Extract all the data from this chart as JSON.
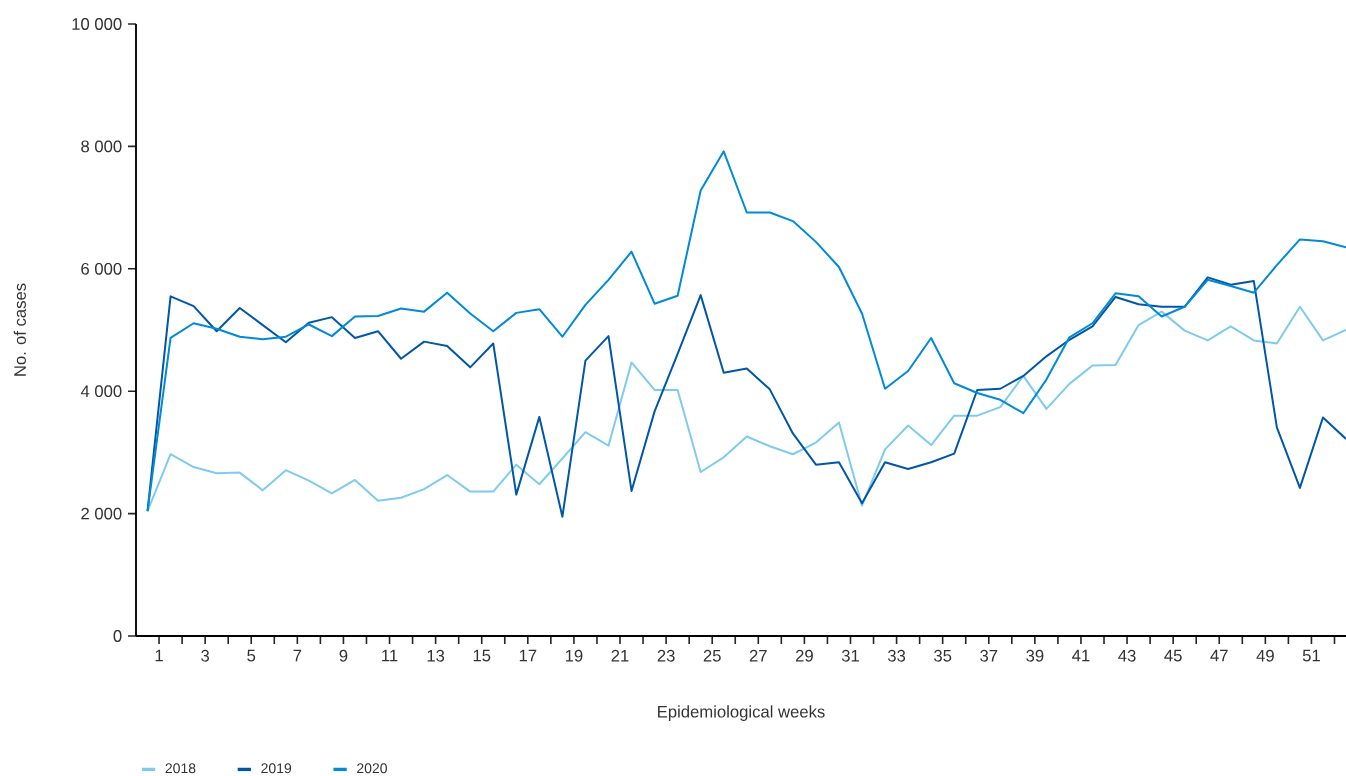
{
  "chart_data": {
    "type": "line",
    "xlabel": "Epidemiological weeks",
    "ylabel": "No. of cases",
    "x": [
      0.5,
      1.5,
      2.5,
      3.5,
      4.5,
      5.5,
      6.5,
      7.5,
      8.5,
      9.5,
      10.5,
      11.5,
      12.5,
      13.5,
      14.5,
      15.5,
      16.5,
      17.5,
      18.5,
      19.5,
      20.5,
      21.5,
      22.5,
      23.5,
      24.5,
      25.5,
      26.5,
      27.5,
      28.5,
      29.5,
      30.5,
      31.5,
      32.5,
      33.5,
      34.5,
      35.5,
      36.5,
      37.5,
      38.5,
      39.5,
      40.5,
      41.5,
      42.5,
      43.5,
      44.5,
      45.5,
      46.5,
      47.5,
      48.5,
      49.5,
      50.5,
      51.5,
      52.5
    ],
    "series": [
      {
        "name": "2018",
        "color": "#7fcbef",
        "values": [
          2040,
          2970,
          2760,
          2660,
          2670,
          2380,
          2710,
          2540,
          2330,
          2550,
          2210,
          2260,
          2400,
          2630,
          2360,
          2360,
          2800,
          2480,
          2900,
          3330,
          3110,
          4470,
          4020,
          4020,
          2680,
          2920,
          3260,
          3100,
          2970,
          3160,
          3490,
          2130,
          3050,
          3440,
          3120,
          3600,
          3600,
          3740,
          4250,
          3710,
          4120,
          4420,
          4430,
          5080,
          5300,
          4990,
          4830,
          5060,
          4830,
          4780,
          5380,
          4830,
          5000
        ]
      },
      {
        "name": "2019",
        "color": "#0057a8",
        "values": [
          2040,
          5550,
          5390,
          4980,
          5360,
          5080,
          4800,
          5120,
          5210,
          4870,
          4980,
          4530,
          4810,
          4740,
          4390,
          4780,
          2310,
          3580,
          1950,
          4500,
          4900,
          2370,
          3670,
          4610,
          5570,
          4300,
          4370,
          4030,
          3310,
          2800,
          2840,
          2170,
          2840,
          2730,
          2840,
          2980,
          4020,
          4040,
          4250,
          4570,
          4840,
          5060,
          5540,
          5420,
          5380,
          5380,
          5860,
          5740,
          5800,
          3410,
          2420,
          3570,
          3220
        ]
      },
      {
        "name": "2020",
        "color": "#008ad8",
        "values": [
          2040,
          4870,
          5110,
          5020,
          4890,
          4850,
          4890,
          5090,
          4900,
          5220,
          5230,
          5350,
          5300,
          5610,
          5270,
          4980,
          5280,
          5340,
          4890,
          5410,
          5820,
          6280,
          5430,
          5560,
          7280,
          7920,
          6920,
          6920,
          6780,
          6440,
          6030,
          5270,
          4040,
          4330,
          4870,
          4130,
          3970,
          3860,
          3640,
          4190,
          4880,
          5110,
          5600,
          5550,
          5220,
          5380,
          5820,
          5720,
          5610,
          6060,
          6480,
          6450,
          6350
        ]
      }
    ],
    "xlim": [
      0,
      52.5
    ],
    "xticks": [
      1,
      {
        "value": 2,
        "label": null
      },
      3,
      {
        "value": 4,
        "label": null
      },
      5,
      {
        "value": 6,
        "label": null
      },
      7,
      {
        "value": 8,
        "label": null
      },
      9,
      {
        "value": 10,
        "label": null
      },
      11,
      {
        "value": 12,
        "label": null
      },
      13,
      {
        "value": 14,
        "label": null
      },
      15,
      {
        "value": 16,
        "label": null
      },
      17,
      {
        "value": 18,
        "label": null
      },
      19,
      {
        "value": 20,
        "label": null
      },
      21,
      {
        "value": 22,
        "label": null
      },
      23,
      {
        "value": 24,
        "label": null
      },
      25,
      {
        "value": 26,
        "label": null
      },
      27,
      {
        "value": 28,
        "label": null
      },
      29,
      {
        "value": 30,
        "label": null
      },
      31,
      {
        "value": 32,
        "label": null
      },
      33,
      {
        "value": 34,
        "label": null
      },
      35,
      {
        "value": 36,
        "label": null
      },
      37,
      {
        "value": 38,
        "label": null
      },
      39,
      {
        "value": 40,
        "label": null
      },
      41,
      {
        "value": 42,
        "label": null
      },
      43,
      {
        "value": 44,
        "label": null
      },
      45,
      {
        "value": 46,
        "label": null
      },
      47,
      {
        "value": 48,
        "label": null
      },
      49,
      {
        "value": 50,
        "label": null
      },
      51,
      {
        "value": 52,
        "label": null
      }
    ],
    "ylim": [
      0,
      10000
    ],
    "yticks": [
      0,
      {
        "value": 2000,
        "label": "2 000"
      },
      {
        "value": 4000,
        "label": "4 000"
      },
      {
        "value": 6000,
        "label": "6 000"
      },
      {
        "value": 8000,
        "label": "8 000"
      },
      {
        "value": 10000,
        "label": "10 000"
      }
    ],
    "legend": "bottom left",
    "grid": false,
    "marker": "none",
    "line_style": "solid"
  }
}
